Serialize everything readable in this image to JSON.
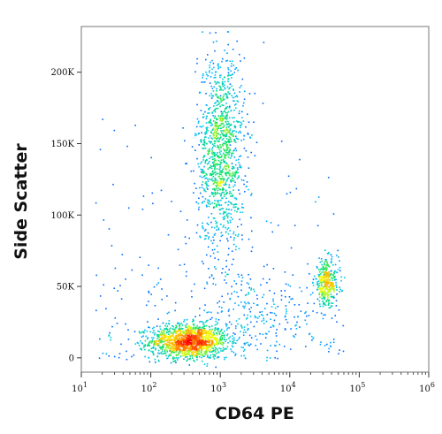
{
  "chart_data": {
    "type": "scatter",
    "subtype": "flow-cytometry-density-dot-plot",
    "title": "",
    "xlabel": "CD64 PE",
    "ylabel": "Side Scatter",
    "x_scale": "log",
    "xlim": [
      10,
      1000000
    ],
    "ylim": [
      -10000,
      232000
    ],
    "x_ticks": [
      {
        "value": 10,
        "base": "10",
        "exp": "1"
      },
      {
        "value": 100,
        "base": "10",
        "exp": "2"
      },
      {
        "value": 1000,
        "base": "10",
        "exp": "3"
      },
      {
        "value": 10000,
        "base": "10",
        "exp": "4"
      },
      {
        "value": 100000,
        "base": "10",
        "exp": "5"
      },
      {
        "value": 1000000,
        "base": "10",
        "exp": "6"
      }
    ],
    "y_ticks": [
      {
        "value": 0,
        "label": "0"
      },
      {
        "value": 50000,
        "label": "50K"
      },
      {
        "value": 100000,
        "label": "100K"
      },
      {
        "value": 150000,
        "label": "150K"
      },
      {
        "value": 200000,
        "label": "200K"
      }
    ],
    "grid": false,
    "legend": "none",
    "colormap": [
      "#0000ff",
      "#00bfff",
      "#00e070",
      "#f0ff00",
      "#ffa000",
      "#ff0000"
    ],
    "populations": [
      {
        "center_x": 350,
        "center_y": 12000,
        "spread_log_x": 0.28,
        "spread_y": 6000,
        "relative_density": 1.0
      },
      {
        "center_x": 1000,
        "center_y": 145000,
        "spread_log_x": 0.17,
        "spread_y": 35000,
        "relative_density": 0.85
      },
      {
        "center_x": 33000,
        "center_y": 53000,
        "spread_log_x": 0.09,
        "spread_y": 8000,
        "relative_density": 0.25
      },
      {
        "center_x": 3000,
        "center_y": 30000,
        "spread_log_x": 0.5,
        "spread_y": 12000,
        "relative_density": 0.15
      }
    ]
  }
}
